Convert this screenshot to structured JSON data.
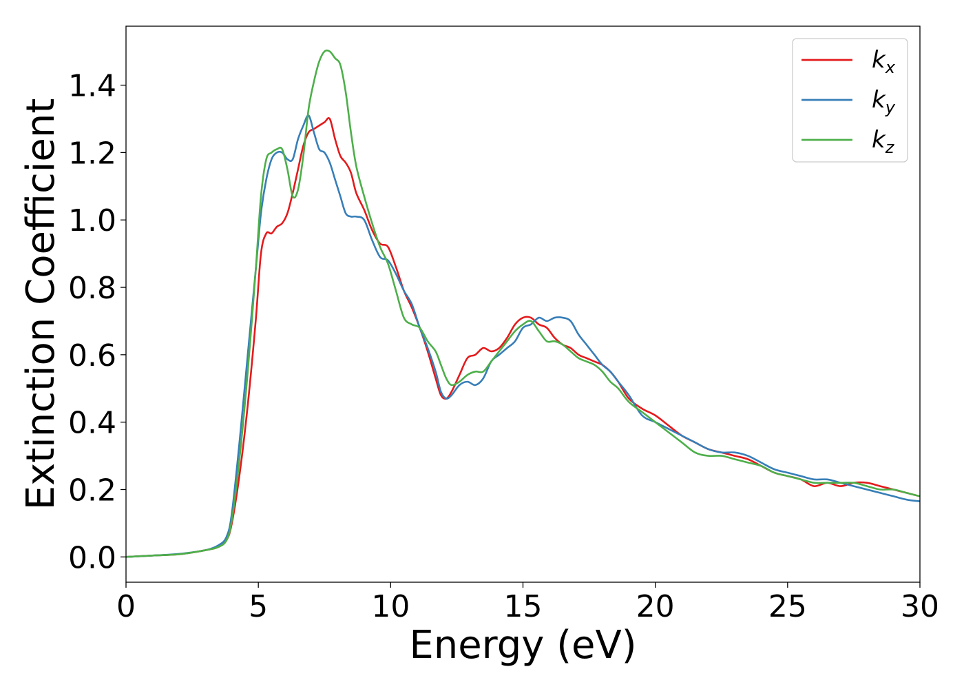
{
  "chart_data": {
    "type": "line",
    "title": "",
    "xlabel": "Energy (eV)",
    "ylabel": "Extinction Coefficient",
    "xlim": [
      0,
      30
    ],
    "ylim": [
      -0.075,
      1.575
    ],
    "xticks": [
      0,
      5,
      10,
      15,
      20,
      25,
      30
    ],
    "yticks": [
      0.0,
      0.2,
      0.4,
      0.6,
      0.8,
      1.0,
      1.2,
      1.4
    ],
    "grid": false,
    "legend_position": "top-right",
    "series": [
      {
        "name": "k",
        "subscript": "x",
        "color": "#e41a1c",
        "x": [
          0,
          1,
          2,
          3,
          3.5,
          3.8,
          4.0,
          4.3,
          4.6,
          4.9,
          5.1,
          5.3,
          5.5,
          5.7,
          5.9,
          6.1,
          6.3,
          6.5,
          6.7,
          6.9,
          7.1,
          7.3,
          7.5,
          7.7,
          7.9,
          8.1,
          8.3,
          8.5,
          8.7,
          9.0,
          9.3,
          9.6,
          9.9,
          10.2,
          10.5,
          10.8,
          11.1,
          11.4,
          11.7,
          11.9,
          12.1,
          12.3,
          12.6,
          12.9,
          13.2,
          13.5,
          13.8,
          14.1,
          14.4,
          14.7,
          15.0,
          15.3,
          15.6,
          15.9,
          16.2,
          16.5,
          16.8,
          17.1,
          17.4,
          17.7,
          18.0,
          18.3,
          18.6,
          19.0,
          19.5,
          20.0,
          20.5,
          21.0,
          21.5,
          22.0,
          22.5,
          23.0,
          23.5,
          24.0,
          24.5,
          25.0,
          25.5,
          26.0,
          26.5,
          27.0,
          27.5,
          28.0,
          28.5,
          29.0,
          29.5,
          30.0
        ],
        "y": [
          0.0,
          0.004,
          0.008,
          0.02,
          0.03,
          0.05,
          0.1,
          0.25,
          0.45,
          0.7,
          0.9,
          0.96,
          0.96,
          0.98,
          0.99,
          1.02,
          1.08,
          1.15,
          1.22,
          1.26,
          1.27,
          1.28,
          1.29,
          1.3,
          1.24,
          1.19,
          1.17,
          1.14,
          1.08,
          1.03,
          0.97,
          0.93,
          0.92,
          0.86,
          0.79,
          0.74,
          0.68,
          0.61,
          0.53,
          0.48,
          0.47,
          0.49,
          0.54,
          0.59,
          0.6,
          0.62,
          0.61,
          0.62,
          0.65,
          0.69,
          0.71,
          0.71,
          0.69,
          0.68,
          0.65,
          0.63,
          0.62,
          0.6,
          0.59,
          0.58,
          0.57,
          0.55,
          0.52,
          0.47,
          0.44,
          0.42,
          0.39,
          0.36,
          0.34,
          0.32,
          0.31,
          0.3,
          0.29,
          0.27,
          0.25,
          0.24,
          0.23,
          0.21,
          0.22,
          0.21,
          0.22,
          0.22,
          0.21,
          0.2,
          0.19,
          0.18
        ]
      },
      {
        "name": "k",
        "subscript": "y",
        "color": "#377eb8",
        "x": [
          0,
          1,
          2,
          3,
          3.5,
          3.8,
          4.0,
          4.3,
          4.6,
          4.9,
          5.1,
          5.3,
          5.5,
          5.7,
          5.9,
          6.1,
          6.3,
          6.5,
          6.7,
          6.9,
          7.1,
          7.3,
          7.5,
          7.7,
          7.9,
          8.1,
          8.3,
          8.5,
          8.7,
          9.0,
          9.3,
          9.6,
          9.9,
          10.2,
          10.5,
          10.8,
          11.1,
          11.4,
          11.7,
          11.9,
          12.1,
          12.3,
          12.6,
          12.9,
          13.2,
          13.5,
          13.8,
          14.1,
          14.4,
          14.7,
          15.0,
          15.3,
          15.6,
          15.9,
          16.2,
          16.5,
          16.8,
          17.1,
          17.4,
          17.7,
          18.0,
          18.3,
          18.6,
          19.0,
          19.5,
          20.0,
          20.5,
          21.0,
          21.5,
          22.0,
          22.5,
          23.0,
          23.5,
          24.0,
          24.5,
          25.0,
          25.5,
          26.0,
          26.5,
          27.0,
          27.5,
          28.0,
          28.5,
          29.0,
          29.5,
          30.0
        ],
        "y": [
          0.0,
          0.004,
          0.009,
          0.02,
          0.035,
          0.06,
          0.13,
          0.35,
          0.6,
          0.85,
          1.02,
          1.12,
          1.18,
          1.2,
          1.2,
          1.18,
          1.18,
          1.24,
          1.28,
          1.31,
          1.26,
          1.21,
          1.2,
          1.17,
          1.12,
          1.07,
          1.02,
          1.01,
          1.01,
          1.0,
          0.94,
          0.89,
          0.88,
          0.84,
          0.79,
          0.75,
          0.68,
          0.62,
          0.55,
          0.49,
          0.47,
          0.48,
          0.51,
          0.52,
          0.51,
          0.53,
          0.58,
          0.6,
          0.62,
          0.64,
          0.68,
          0.69,
          0.71,
          0.7,
          0.71,
          0.71,
          0.7,
          0.66,
          0.63,
          0.6,
          0.57,
          0.55,
          0.52,
          0.48,
          0.42,
          0.4,
          0.38,
          0.36,
          0.34,
          0.32,
          0.31,
          0.31,
          0.3,
          0.28,
          0.26,
          0.25,
          0.24,
          0.23,
          0.23,
          0.22,
          0.21,
          0.2,
          0.19,
          0.18,
          0.17,
          0.165
        ]
      },
      {
        "name": "k",
        "subscript": "z",
        "color": "#4daf4a",
        "x": [
          0,
          1,
          2,
          3,
          3.5,
          3.8,
          4.0,
          4.3,
          4.6,
          4.9,
          5.1,
          5.3,
          5.5,
          5.7,
          5.9,
          6.1,
          6.3,
          6.5,
          6.7,
          6.9,
          7.1,
          7.3,
          7.5,
          7.7,
          7.9,
          8.1,
          8.3,
          8.5,
          8.7,
          9.0,
          9.3,
          9.6,
          9.9,
          10.2,
          10.5,
          10.8,
          11.1,
          11.4,
          11.7,
          11.9,
          12.1,
          12.3,
          12.6,
          12.9,
          13.2,
          13.5,
          13.8,
          14.1,
          14.4,
          14.7,
          15.0,
          15.3,
          15.6,
          15.9,
          16.2,
          16.5,
          16.8,
          17.1,
          17.4,
          17.7,
          18.0,
          18.3,
          18.6,
          19.0,
          19.5,
          20.0,
          20.5,
          21.0,
          21.5,
          22.0,
          22.5,
          23.0,
          23.5,
          24.0,
          24.5,
          25.0,
          25.5,
          26.0,
          26.5,
          27.0,
          27.5,
          28.0,
          28.5,
          29.0,
          29.5,
          30.0
        ],
        "y": [
          0.0,
          0.004,
          0.008,
          0.02,
          0.03,
          0.05,
          0.11,
          0.3,
          0.55,
          0.85,
          1.07,
          1.18,
          1.2,
          1.21,
          1.21,
          1.15,
          1.07,
          1.09,
          1.19,
          1.33,
          1.41,
          1.47,
          1.5,
          1.5,
          1.48,
          1.46,
          1.38,
          1.26,
          1.16,
          1.07,
          0.99,
          0.92,
          0.87,
          0.79,
          0.71,
          0.69,
          0.68,
          0.64,
          0.61,
          0.57,
          0.53,
          0.51,
          0.52,
          0.54,
          0.55,
          0.55,
          0.58,
          0.61,
          0.64,
          0.67,
          0.69,
          0.7,
          0.67,
          0.64,
          0.64,
          0.63,
          0.61,
          0.59,
          0.58,
          0.57,
          0.55,
          0.52,
          0.5,
          0.46,
          0.43,
          0.4,
          0.37,
          0.34,
          0.31,
          0.3,
          0.3,
          0.29,
          0.28,
          0.27,
          0.25,
          0.24,
          0.23,
          0.22,
          0.22,
          0.22,
          0.22,
          0.21,
          0.2,
          0.2,
          0.19,
          0.18
        ]
      }
    ]
  }
}
